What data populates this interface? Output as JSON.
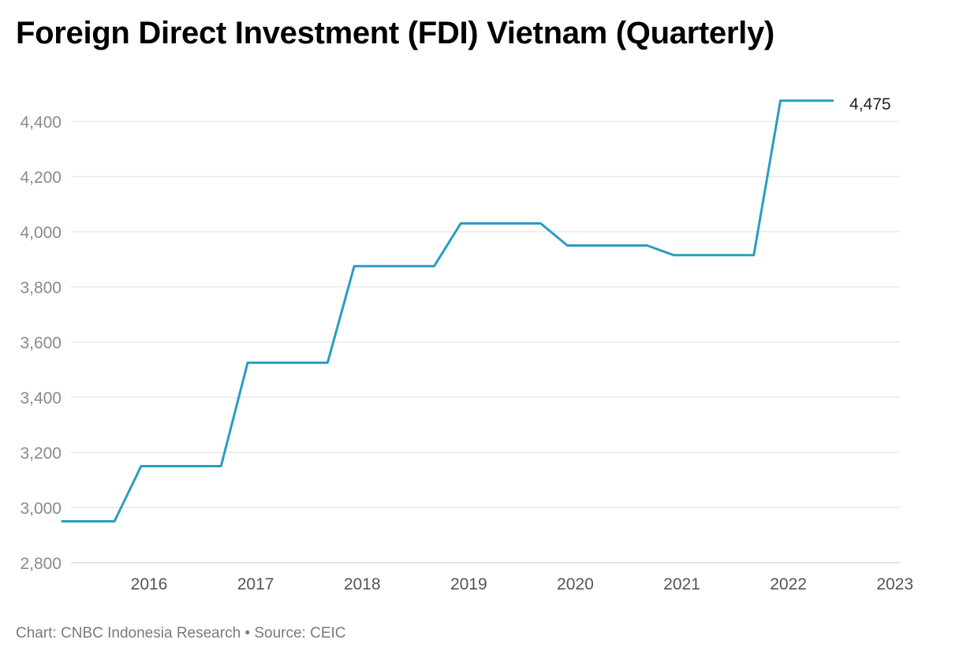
{
  "chart_data": {
    "type": "line",
    "title": "Foreign Direct Investment (FDI) Vietnam (Quarterly)",
    "x": [
      "2015-Q3",
      "2015-Q4",
      "2016-Q1",
      "2016-Q2",
      "2016-Q3",
      "2016-Q4",
      "2017-Q1",
      "2017-Q2",
      "2017-Q3",
      "2017-Q4",
      "2018-Q1",
      "2018-Q2",
      "2018-Q3",
      "2018-Q4",
      "2019-Q1",
      "2019-Q2",
      "2019-Q3",
      "2019-Q4",
      "2020-Q1",
      "2020-Q2",
      "2020-Q3",
      "2020-Q4",
      "2021-Q1",
      "2021-Q2",
      "2021-Q3",
      "2021-Q4",
      "2022-Q1",
      "2022-Q2",
      "2022-Q3",
      "2022-Q4"
    ],
    "series": [
      {
        "values": [
          2950,
          2950,
          2950,
          3150,
          3150,
          3150,
          3150,
          3525,
          3525,
          3525,
          3525,
          3875,
          3875,
          3875,
          3875,
          4030,
          4030,
          4030,
          4030,
          3950,
          3950,
          3950,
          3950,
          3915,
          3915,
          3915,
          3915,
          4475,
          4475,
          4475
        ]
      }
    ],
    "end_label": "4,475",
    "ylim": [
      2800,
      4475
    ],
    "yticks": [
      "2,800",
      "3,000",
      "3,200",
      "3,400",
      "3,600",
      "3,800",
      "4,000",
      "4,200",
      "4,400"
    ],
    "xticks": [
      "2016",
      "2017",
      "2018",
      "2019",
      "2020",
      "2021",
      "2022",
      "2023"
    ],
    "grid": true,
    "line_color": "#2a9dc1"
  },
  "footer": "Chart: CNBC Indonesia Research • Source: CEIC"
}
